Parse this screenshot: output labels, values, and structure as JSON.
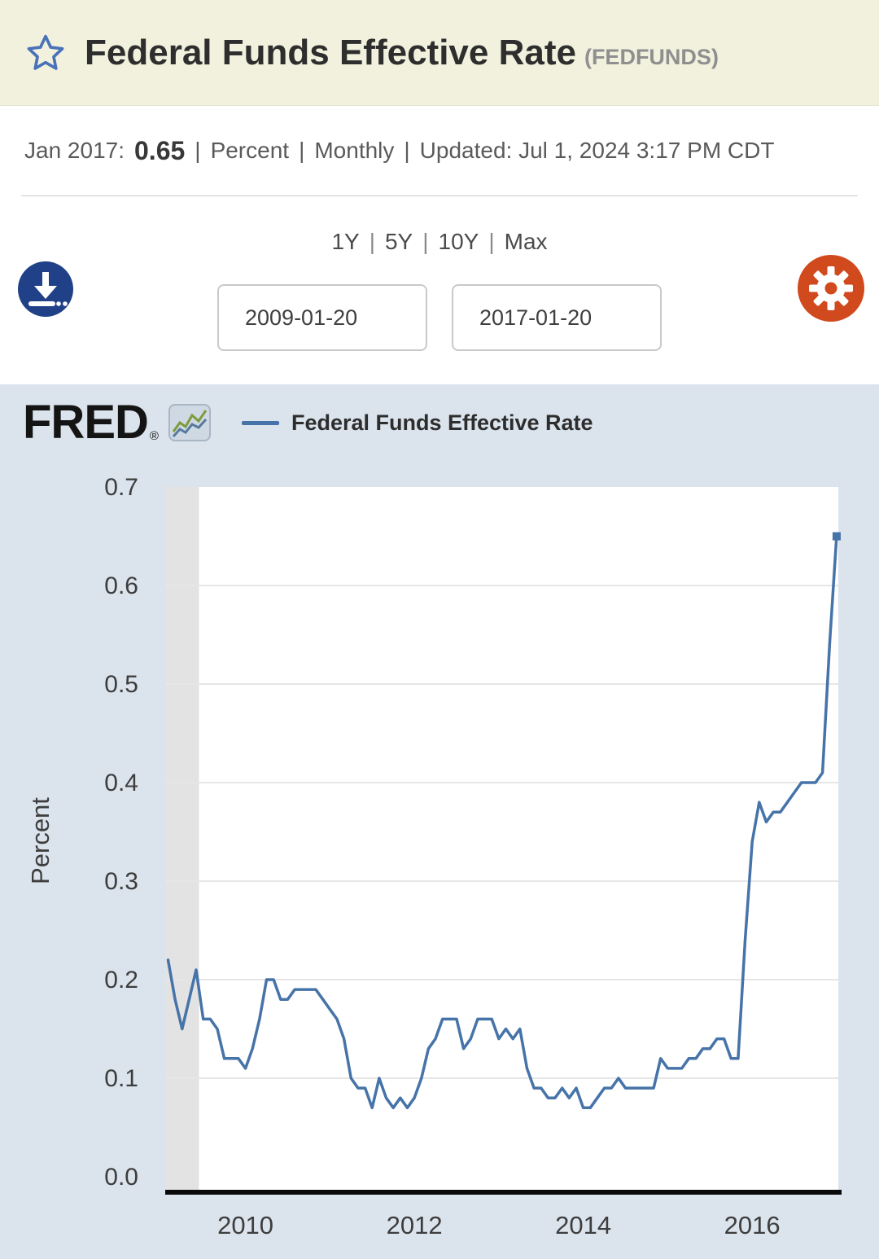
{
  "header": {
    "title": "Federal Funds Effective Rate",
    "ticker": "(FEDFUNDS)"
  },
  "meta": {
    "obs_label": "Jan 2017:",
    "obs_value": "0.65",
    "separator": "|",
    "units": "Percent",
    "frequency": "Monthly",
    "updated": "Updated: Jul 1, 2024 3:17 PM CDT"
  },
  "ranges": {
    "separator": "|",
    "items": [
      "1Y",
      "5Y",
      "10Y",
      "Max"
    ]
  },
  "controls": {
    "start_date": "2009-01-20",
    "end_date": "2017-01-20"
  },
  "logo": {
    "text": "FRED",
    "reg": "®"
  },
  "legend": {
    "label": "Federal Funds Effective Rate",
    "line_color": "#4673a8"
  },
  "chart_data": {
    "type": "line",
    "title": "Federal Funds Effective Rate",
    "ylabel": "Percent",
    "ylim": [
      0.0,
      0.7
    ],
    "yticks": [
      0.0,
      0.1,
      0.2,
      0.3,
      0.4,
      0.5,
      0.6,
      0.7
    ],
    "xticks": [
      2010,
      2012,
      2014,
      2016
    ],
    "x_range": [
      2009.05,
      2017.02
    ],
    "grid": true,
    "line_color": "#4673a8",
    "recession_band": {
      "start": 2009.05,
      "end": 2009.45,
      "color": "#e3e3e3"
    },
    "dates": [
      "2009-02",
      "2009-03",
      "2009-04",
      "2009-05",
      "2009-06",
      "2009-07",
      "2009-08",
      "2009-09",
      "2009-10",
      "2009-11",
      "2009-12",
      "2010-01",
      "2010-02",
      "2010-03",
      "2010-04",
      "2010-05",
      "2010-06",
      "2010-07",
      "2010-08",
      "2010-09",
      "2010-10",
      "2010-11",
      "2010-12",
      "2011-01",
      "2011-02",
      "2011-03",
      "2011-04",
      "2011-05",
      "2011-06",
      "2011-07",
      "2011-08",
      "2011-09",
      "2011-10",
      "2011-11",
      "2011-12",
      "2012-01",
      "2012-02",
      "2012-03",
      "2012-04",
      "2012-05",
      "2012-06",
      "2012-07",
      "2012-08",
      "2012-09",
      "2012-10",
      "2012-11",
      "2012-12",
      "2013-01",
      "2013-02",
      "2013-03",
      "2013-04",
      "2013-05",
      "2013-06",
      "2013-07",
      "2013-08",
      "2013-09",
      "2013-10",
      "2013-11",
      "2013-12",
      "2014-01",
      "2014-02",
      "2014-03",
      "2014-04",
      "2014-05",
      "2014-06",
      "2014-07",
      "2014-08",
      "2014-09",
      "2014-10",
      "2014-11",
      "2014-12",
      "2015-01",
      "2015-02",
      "2015-03",
      "2015-04",
      "2015-05",
      "2015-06",
      "2015-07",
      "2015-08",
      "2015-09",
      "2015-10",
      "2015-11",
      "2015-12",
      "2016-01",
      "2016-02",
      "2016-03",
      "2016-04",
      "2016-05",
      "2016-06",
      "2016-07",
      "2016-08",
      "2016-09",
      "2016-10",
      "2016-11",
      "2016-12",
      "2017-01"
    ],
    "values": [
      0.22,
      0.18,
      0.15,
      0.18,
      0.21,
      0.16,
      0.16,
      0.15,
      0.12,
      0.12,
      0.12,
      0.11,
      0.13,
      0.16,
      0.2,
      0.2,
      0.18,
      0.18,
      0.19,
      0.19,
      0.19,
      0.19,
      0.18,
      0.17,
      0.16,
      0.14,
      0.1,
      0.09,
      0.09,
      0.07,
      0.1,
      0.08,
      0.07,
      0.08,
      0.07,
      0.08,
      0.1,
      0.13,
      0.14,
      0.16,
      0.16,
      0.16,
      0.13,
      0.14,
      0.16,
      0.16,
      0.16,
      0.14,
      0.15,
      0.14,
      0.15,
      0.11,
      0.09,
      0.09,
      0.08,
      0.08,
      0.09,
      0.08,
      0.09,
      0.07,
      0.07,
      0.08,
      0.09,
      0.09,
      0.1,
      0.09,
      0.09,
      0.09,
      0.09,
      0.09,
      0.12,
      0.11,
      0.11,
      0.11,
      0.12,
      0.12,
      0.13,
      0.13,
      0.14,
      0.14,
      0.12,
      0.12,
      0.24,
      0.34,
      0.38,
      0.36,
      0.37,
      0.37,
      0.38,
      0.39,
      0.4,
      0.4,
      0.4,
      0.41,
      0.54,
      0.65
    ]
  }
}
